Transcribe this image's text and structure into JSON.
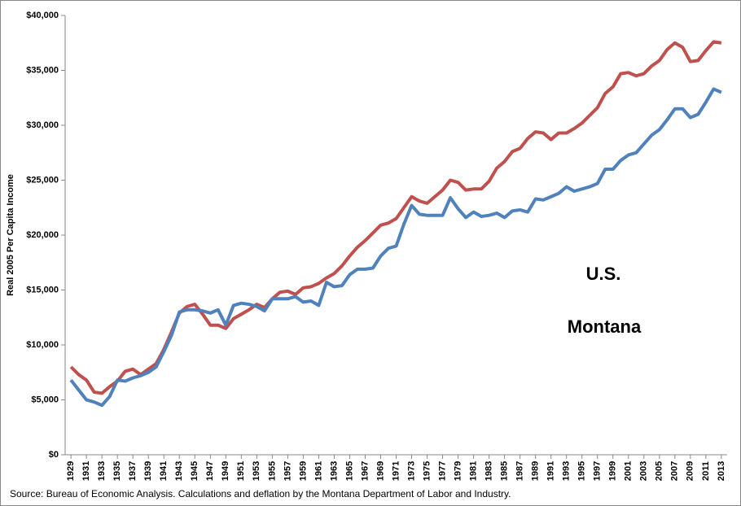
{
  "chart_data": {
    "type": "line",
    "y_label": "Real 2005 Per Capita Income",
    "source": "Source:  Bureau of Economic Analysis.  Calculations and deflation by the Montana Department of Labor and Industry.",
    "x": [
      1929,
      1930,
      1931,
      1932,
      1933,
      1934,
      1935,
      1936,
      1937,
      1938,
      1939,
      1940,
      1941,
      1942,
      1943,
      1944,
      1945,
      1946,
      1947,
      1948,
      1949,
      1950,
      1951,
      1952,
      1953,
      1954,
      1955,
      1956,
      1957,
      1958,
      1959,
      1960,
      1961,
      1962,
      1963,
      1964,
      1965,
      1966,
      1967,
      1968,
      1969,
      1970,
      1971,
      1972,
      1973,
      1974,
      1975,
      1976,
      1977,
      1978,
      1979,
      1980,
      1981,
      1982,
      1983,
      1984,
      1985,
      1986,
      1987,
      1988,
      1989,
      1990,
      1991,
      1992,
      1993,
      1994,
      1995,
      1996,
      1997,
      1998,
      1999,
      2000,
      2001,
      2002,
      2003,
      2004,
      2005,
      2006,
      2007,
      2008,
      2009,
      2010,
      2011,
      2012,
      2013
    ],
    "series": [
      {
        "name": "U.S.",
        "color": "#c0504d",
        "values": [
          8000,
          7300,
          6800,
          5700,
          5600,
          6200,
          6700,
          7600,
          7800,
          7300,
          7800,
          8300,
          9600,
          11200,
          12900,
          13500,
          13700,
          12800,
          11800,
          11800,
          11500,
          12400,
          12800,
          13200,
          13700,
          13400,
          14200,
          14800,
          14900,
          14600,
          15200,
          15300,
          15600,
          16100,
          16500,
          17200,
          18100,
          18900,
          19500,
          20200,
          20900,
          21100,
          21500,
          22500,
          23500,
          23100,
          22900,
          23500,
          24100,
          25000,
          24800,
          24100,
          24200,
          24200,
          24900,
          26100,
          26700,
          27600,
          27900,
          28800,
          29400,
          29300,
          28700,
          29300,
          29300,
          29700,
          30200,
          30900,
          31600,
          32900,
          33500,
          34700,
          34800,
          34500,
          34700,
          35400,
          35900,
          36900,
          37500,
          37100,
          35800,
          35900,
          36800,
          37600,
          37500
        ]
      },
      {
        "name": "Montana",
        "color": "#4f81bd",
        "values": [
          6800,
          5900,
          5000,
          4800,
          4500,
          5300,
          6800,
          6700,
          7000,
          7200,
          7500,
          8000,
          9400,
          10900,
          13000,
          13200,
          13200,
          13100,
          12900,
          13200,
          11800,
          13600,
          13800,
          13700,
          13500,
          13100,
          14200,
          14200,
          14200,
          14400,
          13900,
          14000,
          13600,
          15700,
          15300,
          15400,
          16400,
          16900,
          16900,
          17000,
          18100,
          18800,
          19000,
          21000,
          22700,
          21900,
          21800,
          21800,
          21800,
          23400,
          22400,
          21600,
          22100,
          21700,
          21800,
          22000,
          21600,
          22200,
          22300,
          22100,
          23300,
          23200,
          23500,
          23800,
          24400,
          24000,
          24200,
          24400,
          24700,
          26000,
          26000,
          26800,
          27300,
          27500,
          28300,
          29100,
          29600,
          30500,
          31500,
          31500,
          30700,
          31000,
          32100,
          33300,
          33000
        ]
      }
    ],
    "xlim": [
      1928.25,
      2013.75
    ],
    "xticks": [
      1929,
      1931,
      1933,
      1935,
      1937,
      1939,
      1941,
      1943,
      1945,
      1947,
      1949,
      1951,
      1953,
      1955,
      1957,
      1959,
      1961,
      1963,
      1965,
      1967,
      1969,
      1971,
      1973,
      1975,
      1977,
      1979,
      1981,
      1983,
      1985,
      1987,
      1989,
      1991,
      1993,
      1995,
      1997,
      1999,
      2001,
      2003,
      2005,
      2007,
      2009,
      2011,
      2013
    ],
    "ylim": [
      0,
      40000
    ],
    "yticks": [
      {
        "value": 0,
        "label": "$0"
      },
      {
        "value": 5000,
        "label": "$5,000"
      },
      {
        "value": 10000,
        "label": "$10,000"
      },
      {
        "value": 15000,
        "label": "$15,000"
      },
      {
        "value": 20000,
        "label": "$20,000"
      },
      {
        "value": 25000,
        "label": "$25,000"
      },
      {
        "value": 30000,
        "label": "$30,000"
      },
      {
        "value": 35000,
        "label": "$35,000"
      },
      {
        "value": 40000,
        "label": "$40,000"
      }
    ],
    "grid": false
  }
}
